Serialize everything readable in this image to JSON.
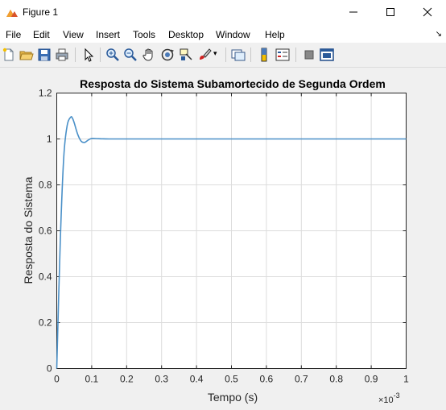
{
  "window": {
    "title": "Figure 1"
  },
  "menu": {
    "items": [
      "File",
      "Edit",
      "View",
      "Insert",
      "Tools",
      "Desktop",
      "Window",
      "Help"
    ]
  },
  "toolbar": {
    "icons": [
      "new-figure-icon",
      "open-file-icon",
      "save-icon",
      "print-icon",
      "edit-plot-arrow-icon",
      "zoom-in-icon",
      "zoom-out-icon",
      "pan-hand-icon",
      "rotate-3d-icon",
      "data-cursor-icon",
      "brush-icon",
      "link-plot-icon",
      "insert-colorbar-icon",
      "insert-legend-icon",
      "hide-plot-tools-icon",
      "show-plot-tools-icon"
    ]
  },
  "colors": {
    "line": "#4a90c8",
    "grid": "#dcdcdc",
    "axes_bg": "#ffffff",
    "figure_bg": "#f0f0f0"
  },
  "chart_data": {
    "type": "line",
    "title": "Resposta do Sistema Subamortecido de Segunda Ordem",
    "xlabel": "Tempo (s)",
    "ylabel": "Resposta do Sistema",
    "x_exponent_label": "×10",
    "x_exponent_power": "-3",
    "xlim": [
      0,
      1
    ],
    "ylim": [
      0,
      1.2
    ],
    "xticks": [
      "0",
      "0.1",
      "0.2",
      "0.3",
      "0.4",
      "0.5",
      "0.6",
      "0.7",
      "0.8",
      "0.9",
      "1"
    ],
    "yticks": [
      "0",
      "0.2",
      "0.4",
      "0.6",
      "0.8",
      "1",
      "1.2"
    ],
    "grid": true,
    "series": [
      {
        "x": [
          0,
          0.01,
          0.02,
          0.03,
          0.04,
          0.045,
          0.05,
          0.06,
          0.07,
          0.08,
          0.09,
          0.1,
          0.12,
          0.15,
          0.2,
          0.3,
          0.5,
          0.7,
          1.0
        ],
        "y": [
          0,
          0.55,
          0.92,
          1.06,
          1.095,
          1.09,
          1.07,
          1.02,
          0.99,
          0.985,
          0.995,
          1.002,
          1.001,
          1.0,
          1.0,
          1.0,
          1.0,
          1.0,
          1.0
        ]
      }
    ]
  }
}
